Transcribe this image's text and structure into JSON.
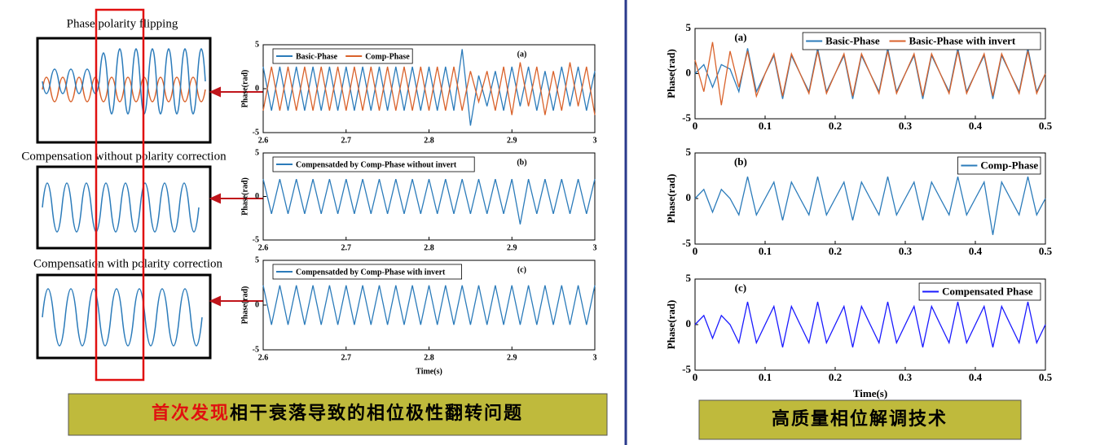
{
  "chart_data": [
    {
      "type": "line",
      "annotation": "(a)",
      "ylabel": "Phase(rad)",
      "legend": "upper left",
      "ylim": [
        -5,
        5
      ],
      "yticks": [
        -5,
        0,
        5
      ],
      "xlim": [
        2.6,
        3
      ],
      "xticks": [
        2.6,
        2.7,
        2.8,
        2.9,
        3
      ],
      "x": [
        2.6,
        2.61,
        2.62,
        2.63,
        2.64,
        2.65,
        2.66,
        2.67,
        2.68,
        2.69,
        2.7,
        2.71,
        2.72,
        2.73,
        2.74,
        2.75,
        2.76,
        2.77,
        2.78,
        2.79,
        2.8,
        2.81,
        2.82,
        2.83,
        2.84,
        2.85,
        2.86,
        2.87,
        2.88,
        2.89,
        2.9,
        2.91,
        2.92,
        2.93,
        2.94,
        2.95,
        2.96,
        2.97,
        2.98,
        2.99,
        3
      ],
      "series": [
        {
          "name": "Basic-Phase",
          "color": "#2b7bba",
          "values": [
            2.5,
            -2.5,
            2.5,
            -2.5,
            2.5,
            -2.5,
            2.5,
            -2.5,
            2.5,
            -2.5,
            2.5,
            -2.5,
            2.5,
            -2.5,
            2.5,
            -2.5,
            2.5,
            -2.5,
            2.5,
            -2.5,
            2.5,
            -2.5,
            2.5,
            -2.5,
            4.5,
            -4.2,
            1.5,
            -2,
            2,
            -2.5,
            2.5,
            -2,
            2.5,
            -2.5,
            2,
            -2.5,
            2.5,
            -2,
            2.5,
            -2.5,
            2
          ]
        },
        {
          "name": "Comp-Phase",
          "color": "#d9622b",
          "values": [
            -2.5,
            2.5,
            -2.5,
            2.5,
            -2.5,
            2.5,
            -2.5,
            2.5,
            -2.5,
            2.5,
            -2.5,
            2.5,
            -2.5,
            2.5,
            -2.5,
            2.5,
            -2.5,
            2.5,
            -2.5,
            2.5,
            -2.5,
            2.5,
            -2.5,
            2.5,
            -2.5,
            2,
            -1.5,
            2,
            -2.5,
            2.5,
            -3,
            3,
            -2,
            2.5,
            -3,
            2,
            -2.5,
            3,
            -2,
            2.5,
            -3
          ]
        }
      ]
    },
    {
      "type": "line",
      "annotation": "(b)",
      "ylabel": "Phase(rad)",
      "legend": "upper left",
      "ylim": [
        -5,
        5
      ],
      "yticks": [
        -5,
        0,
        5
      ],
      "xlim": [
        2.6,
        3
      ],
      "xticks": [
        2.6,
        2.7,
        2.8,
        2.9,
        3
      ],
      "x": [
        2.6,
        2.61,
        2.62,
        2.63,
        2.64,
        2.65,
        2.66,
        2.67,
        2.68,
        2.69,
        2.7,
        2.71,
        2.72,
        2.73,
        2.74,
        2.75,
        2.76,
        2.77,
        2.78,
        2.79,
        2.8,
        2.81,
        2.82,
        2.83,
        2.84,
        2.85,
        2.86,
        2.87,
        2.88,
        2.89,
        2.9,
        2.91,
        2.92,
        2.93,
        2.94,
        2.95,
        2.96,
        2.97,
        2.98,
        2.99,
        3
      ],
      "series": [
        {
          "name": "Compensatded by Comp-Phase without invert",
          "color": "#2b7bba",
          "values": [
            2,
            -2,
            2,
            -2,
            2,
            -2,
            2,
            -2,
            2,
            -2,
            2,
            -2,
            2,
            -2,
            2,
            -2,
            2,
            -2,
            2,
            -2,
            2,
            -2,
            2,
            -2,
            2,
            -2,
            2,
            -2,
            2,
            -2,
            2,
            -3.2,
            2,
            -2,
            2,
            -2,
            2,
            -2,
            2,
            -2,
            2
          ]
        }
      ]
    },
    {
      "type": "line",
      "annotation": "(c)",
      "ylabel": "Phase(rad)",
      "xlabel": "Time(s)",
      "legend": "upper left",
      "ylim": [
        -5,
        5
      ],
      "yticks": [
        -5,
        0,
        5
      ],
      "xlim": [
        2.6,
        3
      ],
      "xticks": [
        2.6,
        2.7,
        2.8,
        2.9,
        3
      ],
      "x": [
        2.6,
        2.61,
        2.62,
        2.63,
        2.64,
        2.65,
        2.66,
        2.67,
        2.68,
        2.69,
        2.7,
        2.71,
        2.72,
        2.73,
        2.74,
        2.75,
        2.76,
        2.77,
        2.78,
        2.79,
        2.8,
        2.81,
        2.82,
        2.83,
        2.84,
        2.85,
        2.86,
        2.87,
        2.88,
        2.89,
        2.9,
        2.91,
        2.92,
        2.93,
        2.94,
        2.95,
        2.96,
        2.97,
        2.98,
        2.99,
        3
      ],
      "series": [
        {
          "name": "Compensatded by Comp-Phase with invert",
          "color": "#2b7bba",
          "values": [
            2.2,
            -2.2,
            2.2,
            -2.2,
            2.2,
            -2.2,
            2.2,
            -2.2,
            2.2,
            -2.2,
            2.2,
            -2.2,
            2.2,
            -2.2,
            2.2,
            -2.2,
            2.2,
            -2.2,
            2.2,
            -2.2,
            2.2,
            -2.2,
            2.2,
            -2.2,
            2.2,
            -2.2,
            2.2,
            -2.2,
            2.2,
            -2.2,
            2.2,
            -2.2,
            2.2,
            -2.2,
            2.2,
            -2.2,
            2.2,
            -2.2,
            2.2,
            -2.2,
            2.2
          ]
        }
      ]
    },
    {
      "type": "line",
      "annotation": "(a)",
      "ylabel": "Phase(rad)",
      "legend": "upper right",
      "ylim": [
        -5,
        5
      ],
      "yticks": [
        -5,
        0,
        5
      ],
      "xlim": [
        0,
        0.5
      ],
      "xticks": [
        0,
        0.1,
        0.2,
        0.3,
        0.4,
        0.5
      ],
      "x": [
        0,
        0.0125,
        0.025,
        0.0375,
        0.05,
        0.0625,
        0.075,
        0.0875,
        0.1,
        0.1125,
        0.125,
        0.1375,
        0.15,
        0.1625,
        0.175,
        0.1875,
        0.2,
        0.2125,
        0.225,
        0.2375,
        0.25,
        0.2625,
        0.275,
        0.2875,
        0.3,
        0.3125,
        0.325,
        0.3375,
        0.35,
        0.3625,
        0.375,
        0.3875,
        0.4,
        0.4125,
        0.425,
        0.4375,
        0.45,
        0.4625,
        0.475,
        0.4875,
        0.5
      ],
      "series": [
        {
          "name": "Basic-Phase",
          "color": "#2b7bba",
          "values": [
            0,
            1,
            -1.5,
            1,
            0.5,
            -2,
            2.8,
            -2,
            0,
            2,
            -2.8,
            2,
            0,
            -2,
            2.8,
            -2,
            0,
            2,
            -2.8,
            2,
            0,
            -2,
            2.8,
            -2,
            0,
            2,
            -2.8,
            2,
            0,
            -2,
            2.8,
            -2,
            0,
            2,
            -2.8,
            2,
            0,
            -2,
            2.8,
            -2,
            0
          ]
        },
        {
          "name": "Basic-Phase with invert",
          "color": "#d9622b",
          "values": [
            1.5,
            -2,
            3.5,
            -3.5,
            2.5,
            -1.5,
            2.5,
            -2.5,
            0,
            2.2,
            -2.5,
            2.2,
            0,
            -2.2,
            2.5,
            -2.2,
            0,
            2.2,
            -2.5,
            2.2,
            0,
            -2.2,
            2.5,
            -2.2,
            0,
            2.2,
            -2.5,
            2.2,
            0,
            -2.2,
            2.5,
            -2.2,
            0,
            2.2,
            -2.5,
            2.2,
            0,
            -2.2,
            2.5,
            -2.2,
            0
          ]
        }
      ]
    },
    {
      "type": "line",
      "annotation": "(b)",
      "ylabel": "Phase(rad)",
      "legend": "upper right",
      "ylim": [
        -5,
        5
      ],
      "yticks": [
        -5,
        0,
        5
      ],
      "xlim": [
        0,
        0.5
      ],
      "xticks": [
        0,
        0.1,
        0.2,
        0.3,
        0.4,
        0.5
      ],
      "x": [
        0,
        0.0125,
        0.025,
        0.0375,
        0.05,
        0.0625,
        0.075,
        0.0875,
        0.1,
        0.1125,
        0.125,
        0.1375,
        0.15,
        0.1625,
        0.175,
        0.1875,
        0.2,
        0.2125,
        0.225,
        0.2375,
        0.25,
        0.2625,
        0.275,
        0.2875,
        0.3,
        0.3125,
        0.325,
        0.3375,
        0.35,
        0.3625,
        0.375,
        0.3875,
        0.4,
        0.4125,
        0.425,
        0.4375,
        0.45,
        0.4625,
        0.475,
        0.4875,
        0.5
      ],
      "series": [
        {
          "name": "Comp-Phase",
          "color": "#2b7bba",
          "values": [
            0,
            1,
            -1.5,
            1,
            0,
            -1.8,
            2.4,
            -1.8,
            0,
            1.8,
            -2.4,
            1.8,
            0,
            -1.8,
            2.4,
            -1.8,
            0,
            1.8,
            -2.4,
            1.8,
            0,
            -1.8,
            2.4,
            -1.8,
            0,
            1.8,
            -2.4,
            1.8,
            0,
            -1.8,
            2.4,
            -1.8,
            0,
            1.8,
            -4,
            1.8,
            0,
            -1.8,
            2.4,
            -1.8,
            0
          ]
        }
      ]
    },
    {
      "type": "line",
      "annotation": "(c)",
      "ylabel": "Phase(rad)",
      "xlabel": "Time(s)",
      "legend": "upper right",
      "ylim": [
        -5,
        5
      ],
      "yticks": [
        -5,
        0,
        5
      ],
      "xlim": [
        0,
        0.5
      ],
      "xticks": [
        0,
        0.1,
        0.2,
        0.3,
        0.4,
        0.5
      ],
      "x": [
        0,
        0.0125,
        0.025,
        0.0375,
        0.05,
        0.0625,
        0.075,
        0.0875,
        0.1,
        0.1125,
        0.125,
        0.1375,
        0.15,
        0.1625,
        0.175,
        0.1875,
        0.2,
        0.2125,
        0.225,
        0.2375,
        0.25,
        0.2625,
        0.275,
        0.2875,
        0.3,
        0.3125,
        0.325,
        0.3375,
        0.35,
        0.3625,
        0.375,
        0.3875,
        0.4,
        0.4125,
        0.425,
        0.4375,
        0.45,
        0.4625,
        0.475,
        0.4875,
        0.5
      ],
      "series": [
        {
          "name": "Compensated Phase",
          "color": "#1a1aff",
          "values": [
            0,
            1,
            -1.5,
            1,
            0,
            -2,
            2.5,
            -2,
            0,
            2,
            -2.5,
            2,
            0,
            -2,
            2.5,
            -2,
            0,
            2,
            -2.5,
            2,
            0,
            -2,
            2.5,
            -2,
            0,
            2,
            -2.5,
            2,
            0,
            -2,
            2.5,
            -2,
            0,
            2,
            -2.5,
            2,
            0,
            -2,
            2.5,
            -2,
            0
          ]
        }
      ]
    }
  ],
  "insets": [
    "Phase polarity flipping",
    "Compensation without polarity correction",
    "Compensation with polarity correction"
  ],
  "banners": {
    "left": {
      "highlight": "首次发现",
      "text": "相干衰落导致的相位极性翻转问题"
    },
    "right": "高质量相位解调技术"
  }
}
